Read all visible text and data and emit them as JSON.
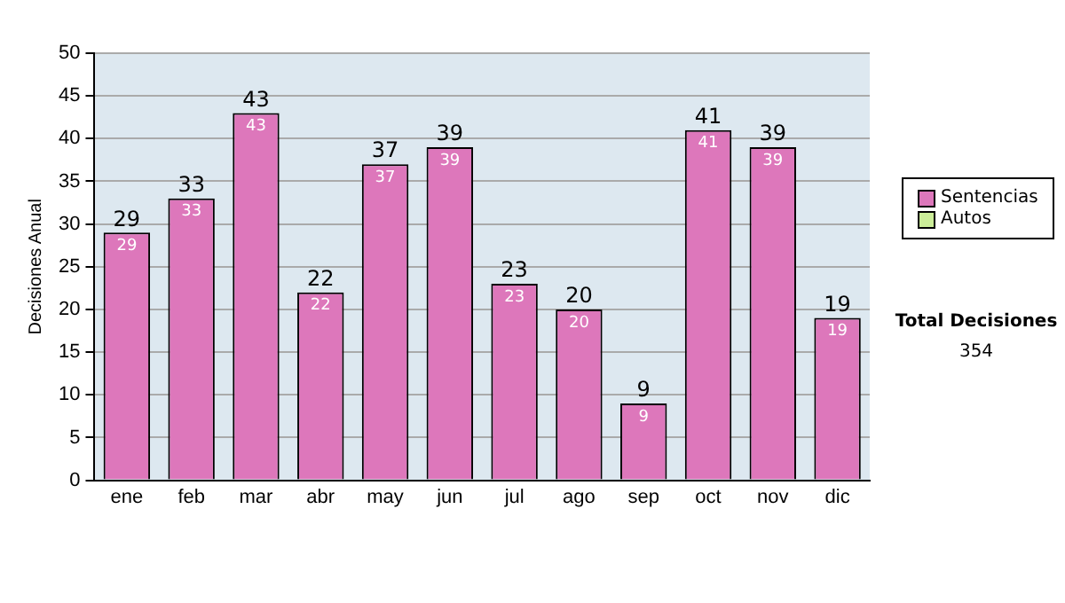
{
  "chart_data": {
    "type": "bar",
    "ylabel": "Decisiones Anual",
    "categories": [
      "ene",
      "feb",
      "mar",
      "abr",
      "may",
      "jun",
      "jul",
      "ago",
      "sep",
      "oct",
      "nov",
      "dic"
    ],
    "series": [
      {
        "name": "Sentencias",
        "color": "#dd77bb",
        "values": [
          29,
          33,
          43,
          22,
          37,
          39,
          23,
          20,
          9,
          41,
          39,
          19
        ]
      },
      {
        "name": "Autos",
        "color": "#ccee99",
        "values": [
          null,
          null,
          null,
          null,
          null,
          null,
          null,
          null,
          null,
          null,
          null,
          null
        ]
      }
    ],
    "stacked": true,
    "data_labels": true,
    "totals": [
      "29",
      "33",
      "43",
      "22",
      "37",
      "39",
      "23",
      "20",
      "9",
      "41",
      "39",
      "19"
    ],
    "ylim": [
      0,
      50
    ],
    "yticks": [
      0,
      5,
      10,
      15,
      20,
      25,
      30,
      35,
      40,
      45,
      50
    ],
    "grid": "y",
    "legend": "right",
    "annotations": [
      "Total Decisiones",
      "354"
    ]
  }
}
